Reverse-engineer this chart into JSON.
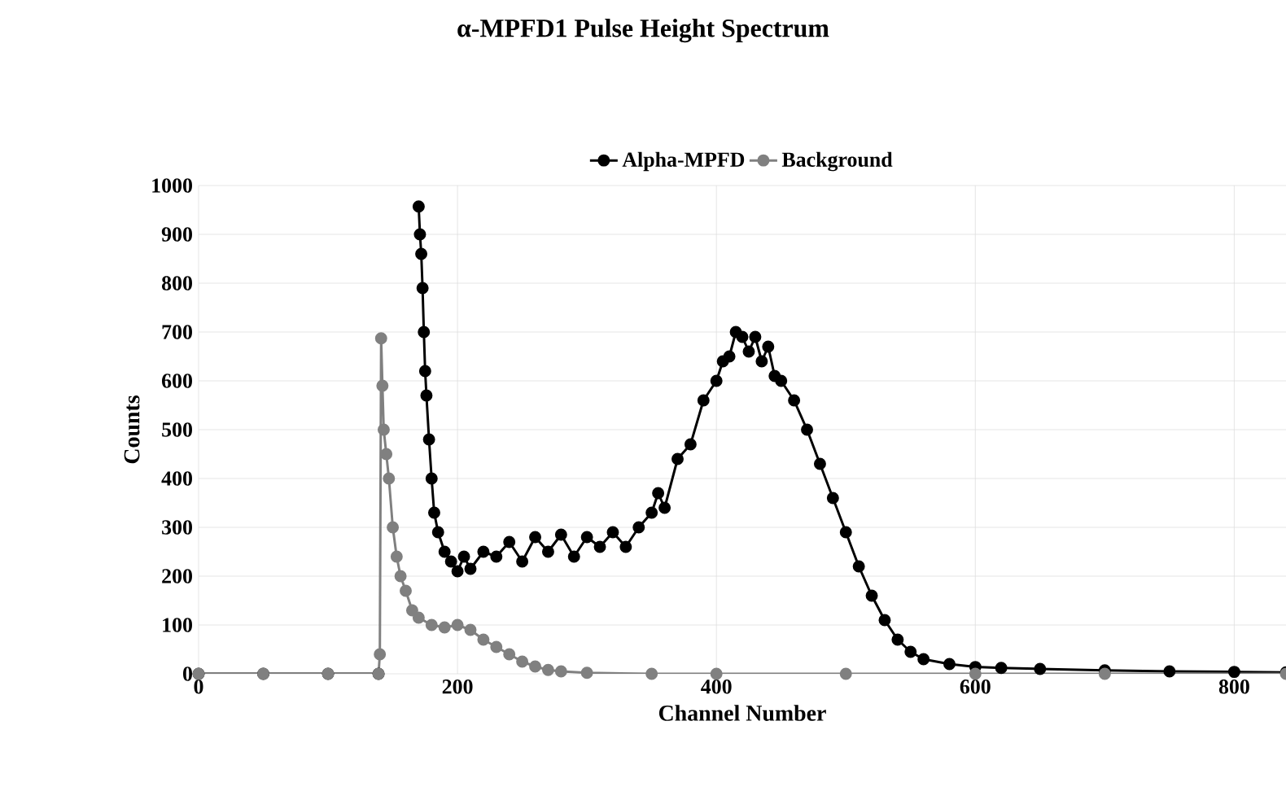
{
  "chart_data": {
    "type": "line",
    "title": "α-MPFD1 Pulse Height Spectrum",
    "xlabel": "Channel Number",
    "ylabel": "Counts",
    "xlim": [
      0,
      840
    ],
    "xticks": [
      0,
      200,
      400,
      600,
      800
    ],
    "ylim": [
      0,
      1000
    ],
    "yticks": [
      0,
      100,
      200,
      300,
      400,
      500,
      600,
      700,
      800,
      900,
      1000
    ],
    "grid": true,
    "legend": "top",
    "marker": "circle",
    "line_style": "solid",
    "series": [
      {
        "name": "Alpha-MPFD",
        "color": "#000000",
        "x": [
          0,
          50,
          100,
          139,
          140,
          170,
          171,
          172,
          173,
          174,
          175,
          176,
          178,
          180,
          182,
          185,
          190,
          195,
          200,
          205,
          210,
          220,
          230,
          240,
          250,
          260,
          270,
          280,
          290,
          300,
          310,
          320,
          330,
          340,
          350,
          355,
          360,
          370,
          380,
          390,
          400,
          405,
          410,
          415,
          420,
          425,
          430,
          435,
          440,
          445,
          450,
          460,
          470,
          480,
          490,
          500,
          510,
          520,
          530,
          540,
          550,
          560,
          580,
          600,
          620,
          650,
          700,
          750,
          800,
          840
        ],
        "values": [
          0,
          0,
          0,
          0,
          null,
          957,
          900,
          860,
          790,
          700,
          620,
          570,
          480,
          400,
          330,
          290,
          250,
          230,
          210,
          240,
          215,
          250,
          240,
          270,
          230,
          280,
          250,
          285,
          240,
          280,
          260,
          290,
          260,
          300,
          330,
          370,
          340,
          440,
          470,
          560,
          600,
          640,
          650,
          700,
          690,
          660,
          690,
          640,
          670,
          610,
          600,
          560,
          500,
          430,
          360,
          290,
          220,
          160,
          110,
          70,
          45,
          30,
          20,
          14,
          12,
          10,
          7,
          5,
          4,
          3
        ]
      },
      {
        "name": "Background",
        "color": "#808080",
        "x": [
          0,
          50,
          100,
          139,
          140,
          141,
          142,
          143,
          145,
          147,
          150,
          153,
          156,
          160,
          165,
          170,
          180,
          190,
          200,
          210,
          220,
          230,
          240,
          250,
          260,
          270,
          280,
          300,
          350,
          400,
          500,
          600,
          700,
          840
        ],
        "values": [
          0,
          0,
          0,
          0,
          40,
          687,
          590,
          500,
          450,
          400,
          300,
          240,
          200,
          170,
          130,
          115,
          100,
          95,
          100,
          90,
          70,
          55,
          40,
          25,
          15,
          8,
          5,
          2,
          0,
          0,
          0,
          0,
          0,
          0
        ]
      }
    ]
  }
}
